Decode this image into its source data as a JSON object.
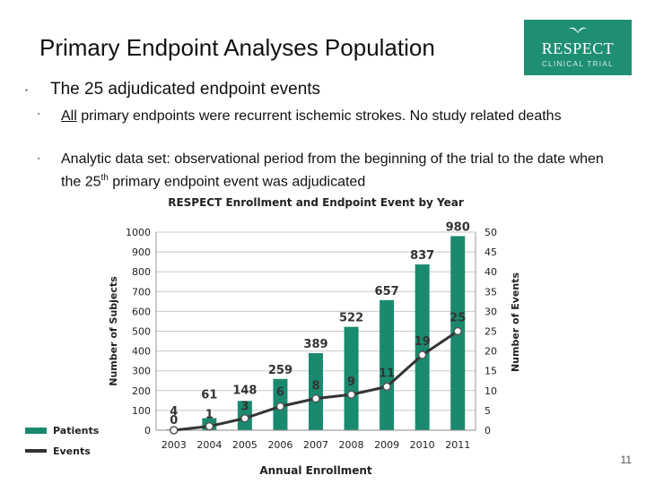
{
  "slide": {
    "title": "Primary Endpoint Analyses Population",
    "bullet1": "The 25 adjudicated endpoint events",
    "bullet2_underlined": "All",
    "bullet2_rest": " primary endpoints were recurrent ischemic strokes. No study related deaths",
    "bullet3_part1": "Analytic data set: observational period from the beginning of the trial to the date when the 25",
    "bullet3_sup": "th",
    "bullet3_part2": " primary endpoint event was adjudicated",
    "bullet_glyph": "▪",
    "page_number": "11"
  },
  "logo": {
    "name": "RESPECT",
    "subtitle": "CLINICAL TRIAL",
    "color": "#1f8f74"
  },
  "chart_data": {
    "type": "bar",
    "title": "RESPECT Enrollment and Endpoint Event by Year",
    "xlabel": "Annual Enrollment",
    "ylabel": "Number of Subjects",
    "y2label": "Number of Events",
    "categories": [
      "2003",
      "2004",
      "2005",
      "2006",
      "2007",
      "2008",
      "2009",
      "2010",
      "2011"
    ],
    "ylim": [
      0,
      1000
    ],
    "y2lim": [
      0,
      50
    ],
    "yticks": [
      "0",
      "100",
      "200",
      "300",
      "400",
      "500",
      "600",
      "700",
      "800",
      "900",
      "1000"
    ],
    "y2ticks": [
      "0",
      "5",
      "10",
      "15",
      "20",
      "25",
      "30",
      "35",
      "40",
      "45",
      "50"
    ],
    "grid": true,
    "legend": "bottom-left",
    "series": [
      {
        "name": "Patients",
        "type": "bar",
        "axis": "left",
        "color": "#1a8a6e",
        "values": [
          4,
          61,
          148,
          259,
          389,
          522,
          657,
          837,
          980
        ],
        "labels": [
          "4",
          "61",
          "148",
          "259",
          "389",
          "522",
          "657",
          "837",
          "980"
        ]
      },
      {
        "name": "Events",
        "type": "line",
        "axis": "right",
        "color": "#333333",
        "values": [
          0,
          1,
          3,
          6,
          8,
          9,
          11,
          19,
          25
        ],
        "labels": [
          "0",
          "1",
          "3",
          "6",
          "8",
          "9",
          "11",
          "19",
          "25"
        ]
      }
    ]
  }
}
